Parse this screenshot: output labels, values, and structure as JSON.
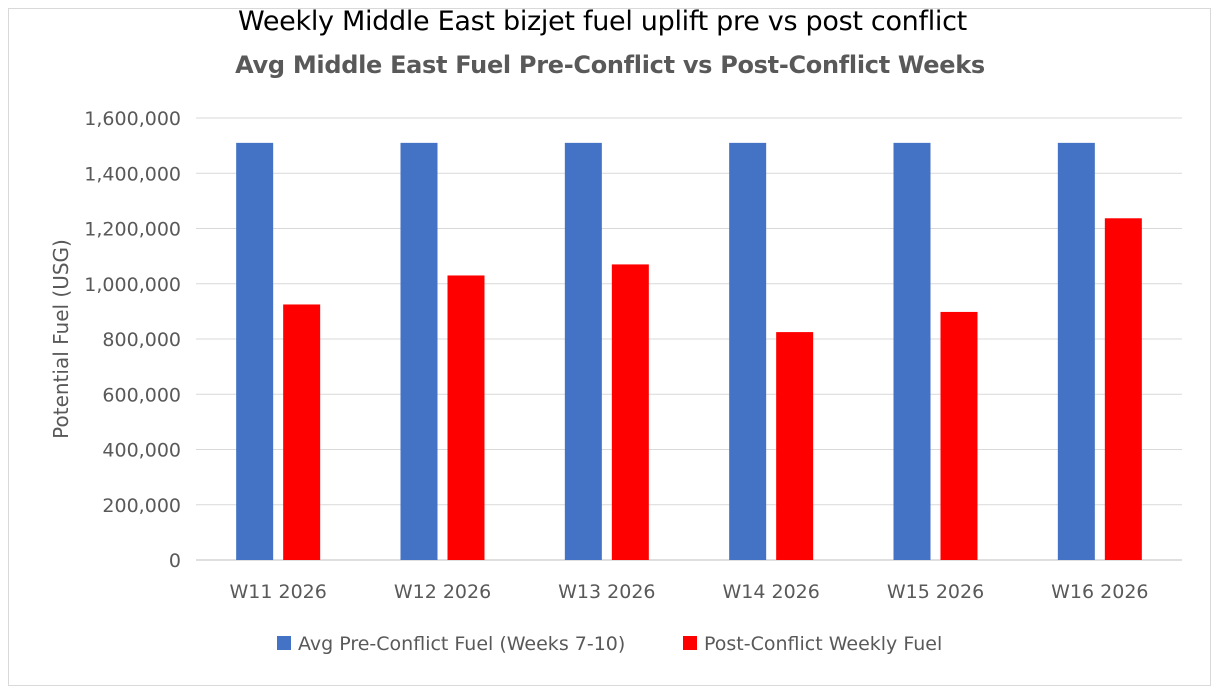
{
  "outer_title": "Weekly Middle East bizjet fuel uplift pre vs post conflict",
  "chart_data": {
    "type": "bar",
    "title": "Avg Middle East Fuel Pre-Conflict vs Post-Conflict Weeks",
    "xlabel": "",
    "ylabel": "Potential Fuel (USG)",
    "ylim": [
      0,
      1600000
    ],
    "yticks": [
      0,
      200000,
      400000,
      600000,
      800000,
      1000000,
      1200000,
      1400000,
      1600000
    ],
    "ytick_labels": [
      "0",
      "200,000",
      "400,000",
      "600,000",
      "800,000",
      "1,000,000",
      "1,200,000",
      "1,400,000",
      "1,600,000"
    ],
    "grid": true,
    "legend_position": "bottom",
    "categories": [
      "W11 2026",
      "W12 2026",
      "W13 2026",
      "W14 2026",
      "W15 2026",
      "W16 2026"
    ],
    "series": [
      {
        "name": "Avg Pre-Conflict Fuel (Weeks 7-10)",
        "color": "#4472c4",
        "values": [
          1510000,
          1510000,
          1510000,
          1510000,
          1510000,
          1510000
        ]
      },
      {
        "name": "Post-Conflict Weekly Fuel",
        "color": "#ff0000",
        "values": [
          925000,
          1030000,
          1070000,
          825000,
          898000,
          1237000
        ]
      }
    ]
  }
}
